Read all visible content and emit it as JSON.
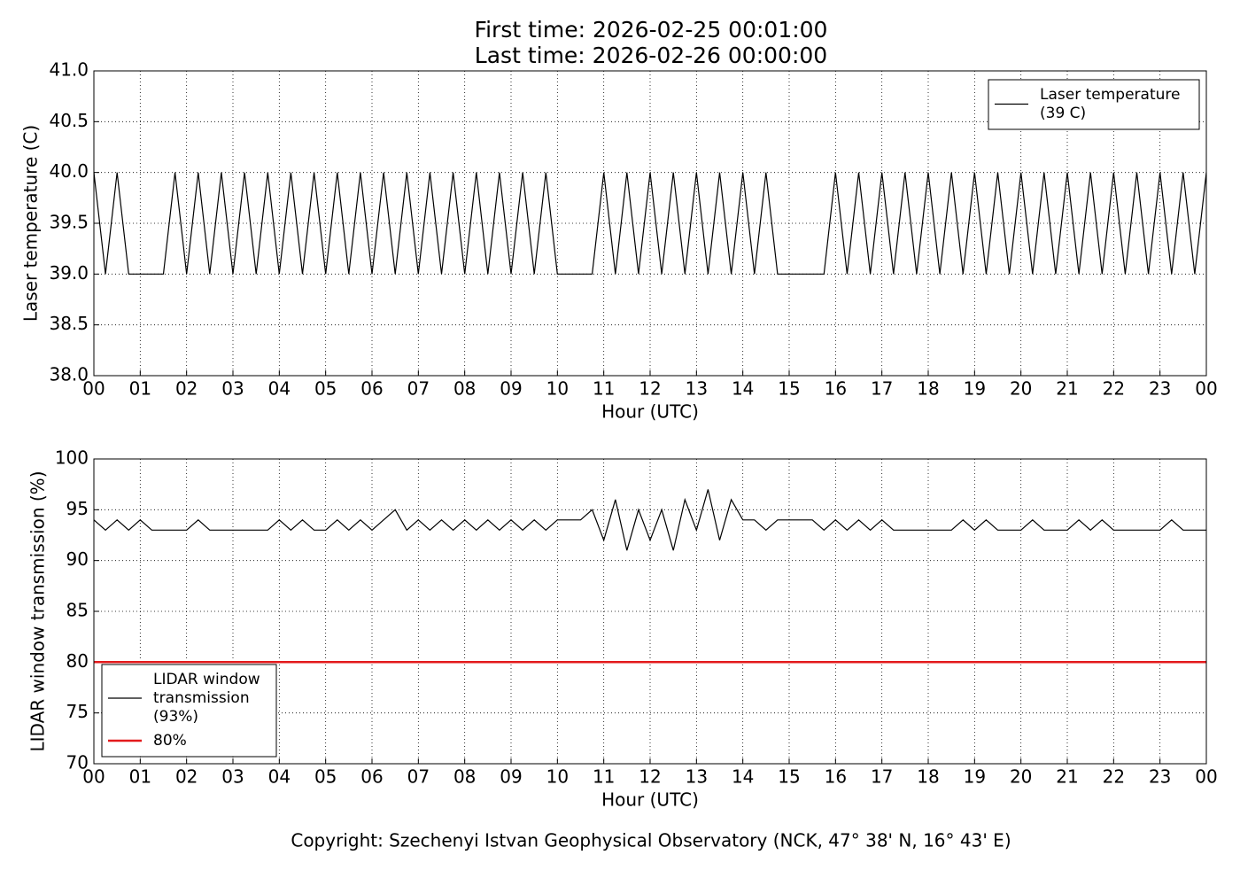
{
  "footer": "Copyright: Szechenyi Istvan Geophysical Observatory (NCK, 47° 38' N, 16° 43' E)",
  "chart_data": [
    {
      "type": "line",
      "title": "First time: 2026-02-25 00:01:00",
      "subtitle": "Last time: 2026-02-26 00:00:00",
      "xlabel": "Hour (UTC)",
      "ylabel": "Laser temperature (C)",
      "grid": true,
      "legend": "upper right",
      "xlim": [
        0,
        24
      ],
      "ylim": [
        38,
        41
      ],
      "xticks": [
        {
          "value": 0,
          "label": "00"
        },
        {
          "value": 1,
          "label": "01"
        },
        {
          "value": 2,
          "label": "02"
        },
        {
          "value": 3,
          "label": "03"
        },
        {
          "value": 4,
          "label": "04"
        },
        {
          "value": 5,
          "label": "05"
        },
        {
          "value": 6,
          "label": "06"
        },
        {
          "value": 7,
          "label": "07"
        },
        {
          "value": 8,
          "label": "08"
        },
        {
          "value": 9,
          "label": "09"
        },
        {
          "value": 10,
          "label": "10"
        },
        {
          "value": 11,
          "label": "11"
        },
        {
          "value": 12,
          "label": "12"
        },
        {
          "value": 13,
          "label": "13"
        },
        {
          "value": 14,
          "label": "14"
        },
        {
          "value": 15,
          "label": "15"
        },
        {
          "value": 16,
          "label": "16"
        },
        {
          "value": 17,
          "label": "17"
        },
        {
          "value": 18,
          "label": "18"
        },
        {
          "value": 19,
          "label": "19"
        },
        {
          "value": 20,
          "label": "20"
        },
        {
          "value": 21,
          "label": "21"
        },
        {
          "value": 22,
          "label": "22"
        },
        {
          "value": 23,
          "label": "23"
        },
        {
          "value": 24,
          "label": "00"
        }
      ],
      "yticks": [
        {
          "value": 38,
          "label": "38.0"
        },
        {
          "value": 38.5,
          "label": "38.5"
        },
        {
          "value": 39,
          "label": "39.0"
        },
        {
          "value": 39.5,
          "label": "39.5"
        },
        {
          "value": 40,
          "label": "40.0"
        },
        {
          "value": 40.5,
          "label": "40.5"
        },
        {
          "value": 41,
          "label": "41.0"
        }
      ],
      "series": [
        {
          "name": "Laser temperature\n(39 C)",
          "color": "#000000",
          "x": [
            0,
            0.25,
            0.5,
            0.75,
            1,
            1.25,
            1.5,
            1.75,
            2,
            2.25,
            2.5,
            2.75,
            3,
            3.25,
            3.5,
            3.75,
            4,
            4.25,
            4.5,
            4.75,
            5,
            5.25,
            5.5,
            5.75,
            6,
            6.25,
            6.5,
            6.75,
            7,
            7.25,
            7.5,
            7.75,
            8,
            8.25,
            8.5,
            8.75,
            9,
            9.25,
            9.5,
            9.75,
            10,
            10.25,
            10.5,
            10.75,
            11,
            11.25,
            11.5,
            11.75,
            12,
            12.25,
            12.5,
            12.75,
            13,
            13.25,
            13.5,
            13.75,
            14,
            14.25,
            14.5,
            14.75,
            15,
            15.25,
            15.5,
            15.75,
            16,
            16.25,
            16.5,
            16.75,
            17,
            17.25,
            17.5,
            17.75,
            18,
            18.25,
            18.5,
            18.75,
            19,
            19.25,
            19.5,
            19.75,
            20,
            20.25,
            20.5,
            20.75,
            21,
            21.25,
            21.5,
            21.75,
            22,
            22.25,
            22.5,
            22.75,
            23,
            23.25,
            23.5,
            23.75,
            24
          ],
          "values": [
            40,
            39,
            40,
            39,
            39,
            39,
            39,
            40,
            39,
            40,
            39,
            40,
            39,
            40,
            39,
            40,
            39,
            40,
            39,
            40,
            39,
            40,
            39,
            40,
            39,
            40,
            39,
            40,
            39,
            40,
            39,
            40,
            39,
            40,
            39,
            40,
            39,
            40,
            39,
            40,
            39,
            39,
            39,
            39,
            40,
            39,
            40,
            39,
            40,
            39,
            40,
            39,
            40,
            39,
            40,
            39,
            40,
            39,
            40,
            39,
            39,
            39,
            39,
            39,
            40,
            39,
            40,
            39,
            40,
            39,
            40,
            39,
            40,
            39,
            40,
            39,
            40,
            39,
            40,
            39,
            40,
            39,
            40,
            39,
            40,
            39,
            40,
            39,
            40,
            39,
            40,
            39,
            40,
            39,
            40,
            39,
            40
          ]
        }
      ]
    },
    {
      "type": "line",
      "xlabel": "Hour (UTC)",
      "ylabel": "LIDAR window transmission (%)",
      "grid": true,
      "legend": "lower left",
      "xlim": [
        0,
        24
      ],
      "ylim": [
        70,
        100
      ],
      "xticks": [
        {
          "value": 0,
          "label": "00"
        },
        {
          "value": 1,
          "label": "01"
        },
        {
          "value": 2,
          "label": "02"
        },
        {
          "value": 3,
          "label": "03"
        },
        {
          "value": 4,
          "label": "04"
        },
        {
          "value": 5,
          "label": "05"
        },
        {
          "value": 6,
          "label": "06"
        },
        {
          "value": 7,
          "label": "07"
        },
        {
          "value": 8,
          "label": "08"
        },
        {
          "value": 9,
          "label": "09"
        },
        {
          "value": 10,
          "label": "10"
        },
        {
          "value": 11,
          "label": "11"
        },
        {
          "value": 12,
          "label": "12"
        },
        {
          "value": 13,
          "label": "13"
        },
        {
          "value": 14,
          "label": "14"
        },
        {
          "value": 15,
          "label": "15"
        },
        {
          "value": 16,
          "label": "16"
        },
        {
          "value": 17,
          "label": "17"
        },
        {
          "value": 18,
          "label": "18"
        },
        {
          "value": 19,
          "label": "19"
        },
        {
          "value": 20,
          "label": "20"
        },
        {
          "value": 21,
          "label": "21"
        },
        {
          "value": 22,
          "label": "22"
        },
        {
          "value": 23,
          "label": "23"
        },
        {
          "value": 24,
          "label": "00"
        }
      ],
      "yticks": [
        70,
        75,
        80,
        85,
        90,
        95,
        100
      ],
      "series": [
        {
          "name": "LIDAR window\ntransmission\n(93%)",
          "color": "#000000",
          "x": [
            0,
            0.25,
            0.5,
            0.75,
            1,
            1.25,
            1.5,
            1.75,
            2,
            2.25,
            2.5,
            2.75,
            3,
            3.25,
            3.5,
            3.75,
            4,
            4.25,
            4.5,
            4.75,
            5,
            5.25,
            5.5,
            5.75,
            6,
            6.25,
            6.5,
            6.75,
            7,
            7.25,
            7.5,
            7.75,
            8,
            8.25,
            8.5,
            8.75,
            9,
            9.25,
            9.5,
            9.75,
            10,
            10.25,
            10.5,
            10.75,
            11,
            11.25,
            11.5,
            11.75,
            12,
            12.25,
            12.5,
            12.75,
            13,
            13.25,
            13.5,
            13.75,
            14,
            14.25,
            14.5,
            14.75,
            15,
            15.25,
            15.5,
            15.75,
            16,
            16.25,
            16.5,
            16.75,
            17,
            17.25,
            17.5,
            17.75,
            18,
            18.25,
            18.5,
            18.75,
            19,
            19.25,
            19.5,
            19.75,
            20,
            20.25,
            20.5,
            20.75,
            21,
            21.25,
            21.5,
            21.75,
            22,
            22.25,
            22.5,
            22.75,
            23,
            23.25,
            23.5,
            23.75,
            24
          ],
          "values": [
            94,
            93,
            94,
            93,
            94,
            93,
            93,
            93,
            93,
            94,
            93,
            93,
            93,
            93,
            93,
            93,
            94,
            93,
            94,
            93,
            93,
            94,
            93,
            94,
            93,
            94,
            95,
            93,
            94,
            93,
            94,
            93,
            94,
            93,
            94,
            93,
            94,
            93,
            94,
            93,
            94,
            94,
            94,
            95,
            92,
            96,
            91,
            95,
            92,
            95,
            91,
            96,
            93,
            97,
            92,
            96,
            94,
            94,
            93,
            94,
            94,
            94,
            94,
            93,
            94,
            93,
            94,
            93,
            94,
            93,
            93,
            93,
            93,
            93,
            93,
            94,
            93,
            94,
            93,
            93,
            93,
            94,
            93,
            93,
            93,
            94,
            93,
            94,
            93,
            93,
            93,
            93,
            93,
            94,
            93,
            93,
            93
          ]
        },
        {
          "name": "80%",
          "color": "#e31a1c",
          "x": [
            0,
            24
          ],
          "values": [
            80,
            80
          ]
        }
      ]
    }
  ]
}
